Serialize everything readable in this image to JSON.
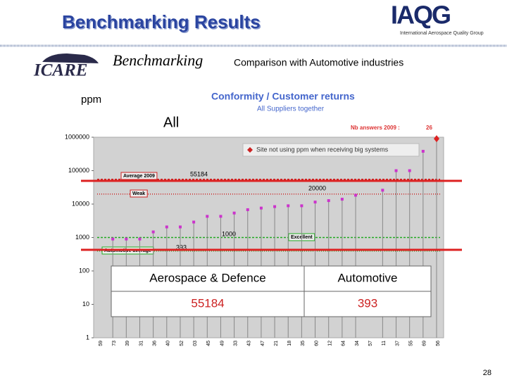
{
  "header": {
    "title": "Benchmarking Results",
    "logo": "IAQG",
    "logo_subtitle": "International Aerospace Quality Group",
    "partner_logo": "ICARE",
    "section": "Benchmarking",
    "subtitle": "Comparison with Automotive industries"
  },
  "chart_data": {
    "type": "scatter",
    "title": "Conformity / Customer returns",
    "subtitle": "All Suppliers together",
    "y_label": "ppm",
    "annotation": "All",
    "nb_answers": {
      "label": "Nb answers 2009 :",
      "value": 26
    },
    "note": "Site not using ppm when receiving big systems",
    "log_scale": true,
    "ylim": [
      1,
      1000000
    ],
    "yticks": [
      1,
      10,
      100,
      1000,
      10000,
      100000,
      1000000
    ],
    "categories": [
      "59",
      "73",
      "39",
      "31",
      "36",
      "40",
      "52",
      "03",
      "45",
      "49",
      "33",
      "43",
      "47",
      "21",
      "18",
      "35",
      "60",
      "12",
      "64",
      "34",
      "57",
      "11",
      "37",
      "55",
      "69",
      "56"
    ],
    "series": [
      {
        "color": "#cc33cc",
        "values": [
          null,
          900,
          900,
          900,
          1470,
          2070,
          2070,
          2900,
          4300,
          4300,
          5400,
          6800,
          7600,
          8400,
          8900,
          8900,
          11500,
          12700,
          14000,
          18400,
          null,
          26000,
          100000,
          100000,
          380000,
          900000
        ]
      }
    ],
    "reference_lines": [
      {
        "label": "Average 2009",
        "value": 55184,
        "color": "#cc2222"
      },
      {
        "label": "Weak",
        "value": 20000,
        "color": "#cc2222"
      },
      {
        "label": "Excellent",
        "value": 1000,
        "color": "#22aa22"
      },
      {
        "label": "Automotive average",
        "value": 393,
        "color": "#22aa22"
      }
    ]
  },
  "table": {
    "headers": [
      "Aerospace & Defence",
      "Automotive"
    ],
    "rows": [
      [
        55184,
        393
      ]
    ]
  },
  "page_number": 28
}
